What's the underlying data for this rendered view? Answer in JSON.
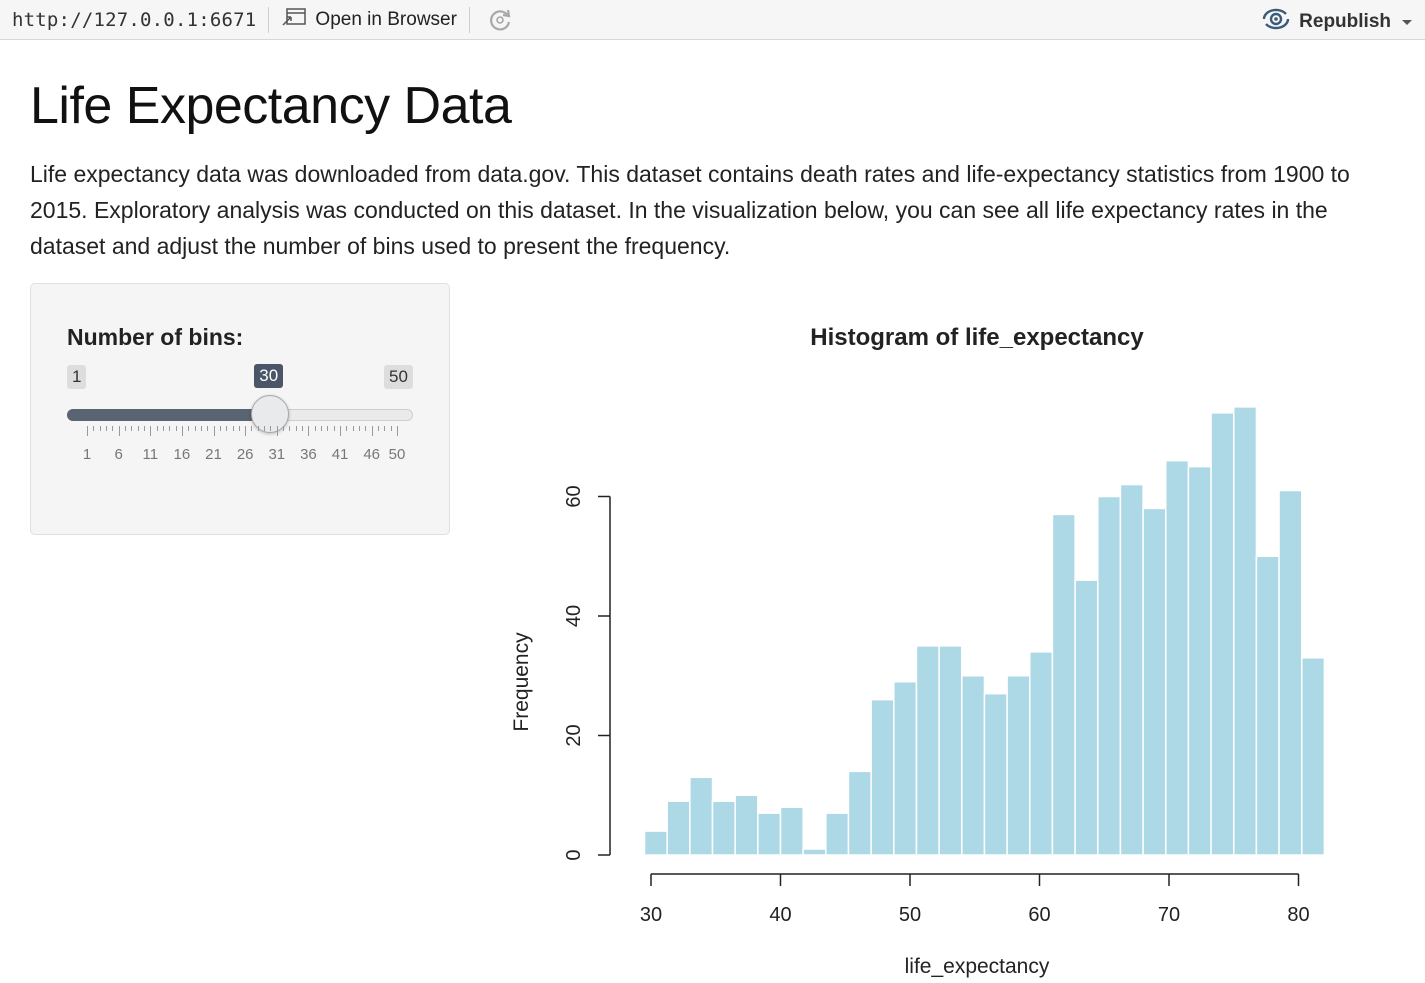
{
  "toolbar": {
    "url": "http://127.0.0.1:6671",
    "open_in_browser": "Open in Browser",
    "republish": "Republish",
    "icons": [
      "open-browser-icon",
      "refresh-icon",
      "republish-icon",
      "chevron-down-icon"
    ]
  },
  "page": {
    "title": "Life Expectancy Data",
    "description": "Life expectancy data was downloaded from data.gov. This dataset contains death rates and life-expectancy statistics from 1900 to 2015. Exploratory analysis was conducted on this dataset. In the visualization below, you can see all life expectancy rates in the dataset and adjust the number of bins used to present the frequency."
  },
  "slider": {
    "label": "Number of bins:",
    "min": 1,
    "max": 50,
    "value": 30,
    "min_label": "1",
    "max_label": "50",
    "value_label": "30",
    "tick_labels": [
      "1",
      "6",
      "11",
      "16",
      "21",
      "26",
      "31",
      "36",
      "41",
      "46",
      "50"
    ],
    "colors": {
      "fill": "#5a6372",
      "value_tag": "#4a5568"
    }
  },
  "chart_data": {
    "type": "bar",
    "title": "Histogram of life_expectancy",
    "xlabel": "life_expectancy",
    "ylabel": "Frequency",
    "bin_width": 1.75,
    "bin_start": 29.5,
    "values": [
      4,
      9,
      13,
      9,
      10,
      7,
      8,
      1,
      7,
      14,
      26,
      29,
      35,
      35,
      30,
      27,
      30,
      34,
      57,
      46,
      60,
      62,
      58,
      66,
      65,
      74,
      75,
      50,
      61,
      33
    ],
    "xlim": [
      30,
      80
    ],
    "ylim": [
      0,
      60
    ],
    "x_ticks": [
      30,
      40,
      50,
      60,
      70,
      80
    ],
    "y_ticks": [
      0,
      20,
      40,
      60
    ],
    "bar_color": "#add8e6",
    "grid": false
  }
}
